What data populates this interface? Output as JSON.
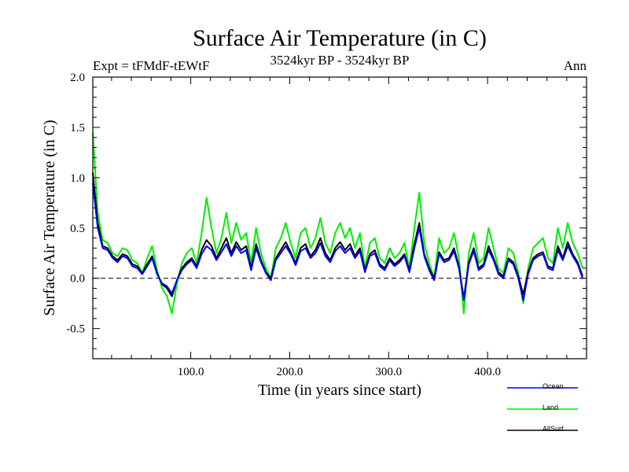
{
  "chart_data": {
    "type": "line",
    "title": "Surface Air Temperature (in C)",
    "subtitle_left": "Expt = tFMdF-tEWtF",
    "subtitle_center": "3524kyr BP - 3524kyr BP",
    "subtitle_right": "Ann",
    "xlabel": "Time (in years since start)",
    "ylabel": "Surface Air Temperature (in C)",
    "xlim": [
      1,
      500
    ],
    "ylim": [
      -0.8,
      2.0
    ],
    "x_ticks": [
      100,
      200,
      300,
      400
    ],
    "x_tick_labels": [
      "100.0",
      "200.0",
      "300.0",
      "400.0"
    ],
    "y_ticks": [
      -0.5,
      0.0,
      0.5,
      1.0,
      1.5,
      2.0
    ],
    "y_tick_labels": [
      "-0.5",
      "0.0",
      "0.5",
      "1.0",
      "1.5",
      "2.0"
    ],
    "reference_line": 0.0,
    "series": [
      {
        "name": "Land",
        "color": "#00ee00",
        "x_start": 1,
        "x_step": 5,
        "values": [
          1.45,
          0.65,
          0.38,
          0.35,
          0.25,
          0.22,
          0.3,
          0.28,
          0.18,
          0.15,
          0.05,
          0.2,
          0.32,
          0.08,
          -0.1,
          -0.18,
          -0.35,
          -0.05,
          0.15,
          0.25,
          0.3,
          0.15,
          0.45,
          0.8,
          0.5,
          0.25,
          0.4,
          0.65,
          0.35,
          0.55,
          0.38,
          0.45,
          0.15,
          0.5,
          0.25,
          0.1,
          0.0,
          0.3,
          0.4,
          0.55,
          0.35,
          0.2,
          0.45,
          0.5,
          0.3,
          0.4,
          0.6,
          0.35,
          0.25,
          0.45,
          0.55,
          0.4,
          0.5,
          0.3,
          0.45,
          0.1,
          0.35,
          0.4,
          0.2,
          0.15,
          0.3,
          0.2,
          0.25,
          0.35,
          0.1,
          0.5,
          0.85,
          0.35,
          0.15,
          0.0,
          0.4,
          0.25,
          0.3,
          0.45,
          0.2,
          -0.35,
          0.25,
          0.45,
          0.15,
          0.2,
          0.5,
          0.3,
          0.1,
          0.05,
          0.3,
          0.25,
          0.05,
          -0.25,
          0.1,
          0.3,
          0.35,
          0.4,
          0.2,
          0.15,
          0.5,
          0.3,
          0.55,
          0.35,
          0.25,
          0.1
        ]
      },
      {
        "name": "AllSurf",
        "color": "#000000",
        "x_start": 1,
        "x_step": 5,
        "values": [
          1.05,
          0.55,
          0.32,
          0.3,
          0.22,
          0.18,
          0.24,
          0.22,
          0.14,
          0.12,
          0.05,
          0.14,
          0.22,
          0.05,
          -0.06,
          -0.1,
          -0.18,
          -0.02,
          0.1,
          0.16,
          0.2,
          0.12,
          0.28,
          0.38,
          0.32,
          0.2,
          0.3,
          0.4,
          0.25,
          0.36,
          0.28,
          0.32,
          0.1,
          0.34,
          0.18,
          0.06,
          0.0,
          0.2,
          0.28,
          0.36,
          0.26,
          0.15,
          0.3,
          0.34,
          0.22,
          0.28,
          0.4,
          0.25,
          0.18,
          0.3,
          0.36,
          0.28,
          0.34,
          0.22,
          0.3,
          0.08,
          0.24,
          0.28,
          0.14,
          0.1,
          0.2,
          0.14,
          0.18,
          0.24,
          0.08,
          0.34,
          0.55,
          0.24,
          0.1,
          0.0,
          0.26,
          0.18,
          0.2,
          0.3,
          0.12,
          -0.2,
          0.16,
          0.3,
          0.1,
          0.14,
          0.32,
          0.2,
          0.06,
          0.02,
          0.2,
          0.16,
          0.02,
          -0.16,
          0.06,
          0.2,
          0.24,
          0.26,
          0.12,
          0.1,
          0.32,
          0.2,
          0.36,
          0.24,
          0.16,
          0.02
        ]
      },
      {
        "name": "Ocean",
        "color": "#0000ee",
        "x_start": 1,
        "x_step": 5,
        "values": [
          0.95,
          0.5,
          0.3,
          0.28,
          0.2,
          0.16,
          0.22,
          0.2,
          0.12,
          0.1,
          0.04,
          0.12,
          0.2,
          0.04,
          -0.05,
          -0.08,
          -0.15,
          -0.02,
          0.08,
          0.14,
          0.18,
          0.1,
          0.24,
          0.32,
          0.28,
          0.18,
          0.26,
          0.34,
          0.22,
          0.32,
          0.25,
          0.28,
          0.08,
          0.3,
          0.16,
          0.05,
          -0.02,
          0.18,
          0.25,
          0.32,
          0.24,
          0.13,
          0.27,
          0.3,
          0.2,
          0.25,
          0.35,
          0.22,
          0.16,
          0.27,
          0.32,
          0.25,
          0.3,
          0.2,
          0.27,
          0.06,
          0.22,
          0.25,
          0.12,
          0.08,
          0.18,
          0.12,
          0.16,
          0.22,
          0.06,
          0.3,
          0.5,
          0.22,
          0.08,
          -0.02,
          0.24,
          0.16,
          0.18,
          0.27,
          0.1,
          -0.22,
          0.14,
          0.27,
          0.08,
          0.12,
          0.28,
          0.18,
          0.04,
          0.0,
          0.18,
          0.14,
          0.0,
          -0.22,
          0.04,
          0.18,
          0.22,
          0.24,
          0.1,
          0.08,
          0.28,
          0.18,
          0.32,
          0.22,
          0.14,
          0.0
        ]
      }
    ],
    "legend": {
      "placement": "bottom-right",
      "entries": [
        {
          "label": "Ocean",
          "color": "#0000ee"
        },
        {
          "label": "Land",
          "color": "#00ee00"
        },
        {
          "label": "AllSurf",
          "color": "#000000"
        }
      ]
    }
  }
}
